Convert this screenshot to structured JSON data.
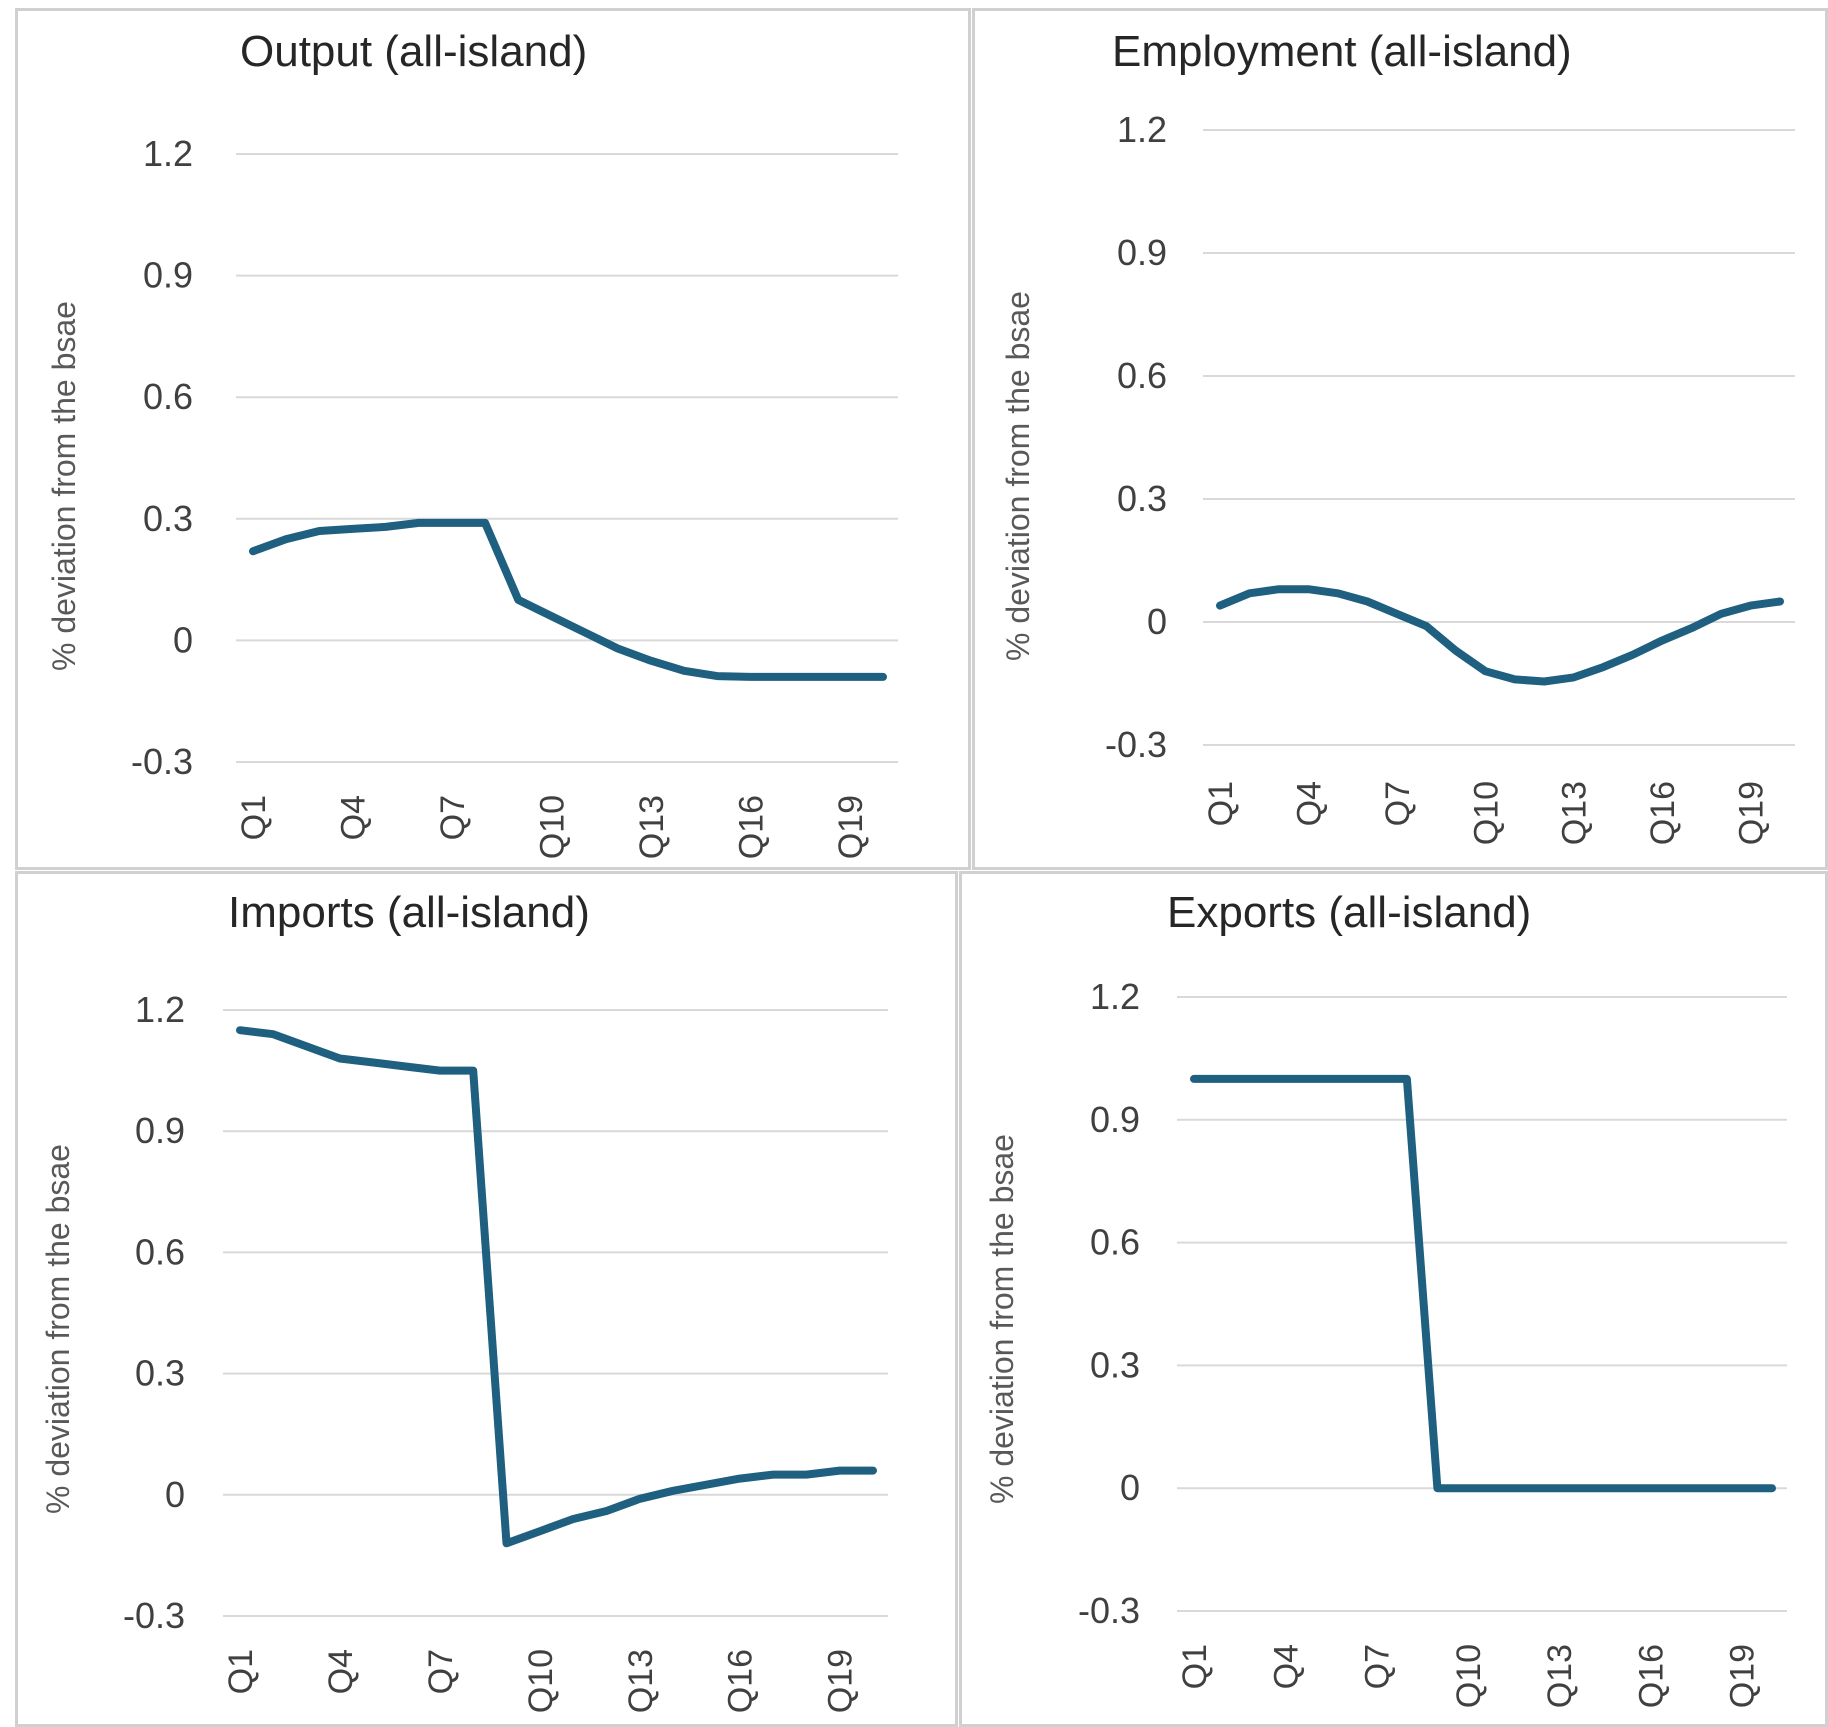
{
  "colors": {
    "series": "#1f5f80",
    "grid": "#d9d9d9",
    "text": "#404040"
  },
  "chart_data": [
    {
      "type": "line",
      "title": "Output (all-island)",
      "ylabel": "% deviation from the bsae",
      "xlabel": "",
      "ylim": [
        -0.3,
        1.2
      ],
      "yticks": [
        "1.2",
        "0.9",
        "0.6",
        "0.3",
        "0",
        "-0.3"
      ],
      "xticks": [
        "Q1",
        "Q4",
        "Q7",
        "Q10",
        "Q13",
        "Q16",
        "Q19"
      ],
      "x": [
        "Q1",
        "Q2",
        "Q3",
        "Q4",
        "Q5",
        "Q6",
        "Q7",
        "Q8",
        "Q9",
        "Q10",
        "Q11",
        "Q12",
        "Q13",
        "Q14",
        "Q15",
        "Q16",
        "Q17",
        "Q18",
        "Q19",
        "Q20"
      ],
      "values": [
        0.22,
        0.25,
        0.27,
        0.275,
        0.28,
        0.29,
        0.29,
        0.29,
        0.1,
        0.06,
        0.02,
        -0.02,
        -0.05,
        -0.075,
        -0.088,
        -0.09,
        -0.09,
        -0.09,
        -0.09,
        -0.09
      ],
      "grid": true
    },
    {
      "type": "line",
      "title": "Employment (all-island)",
      "ylabel": "% deviation from the bsae",
      "xlabel": "",
      "ylim": [
        -0.3,
        1.2
      ],
      "yticks": [
        "1.2",
        "0.9",
        "0.6",
        "0.3",
        "0",
        "-0.3"
      ],
      "xticks": [
        "Q1",
        "Q4",
        "Q7",
        "Q10",
        "Q13",
        "Q16",
        "Q19"
      ],
      "x": [
        "Q1",
        "Q2",
        "Q3",
        "Q4",
        "Q5",
        "Q6",
        "Q7",
        "Q8",
        "Q9",
        "Q10",
        "Q11",
        "Q12",
        "Q13",
        "Q14",
        "Q15",
        "Q16",
        "Q17",
        "Q18",
        "Q19",
        "Q20"
      ],
      "values": [
        0.04,
        0.07,
        0.08,
        0.08,
        0.07,
        0.05,
        0.02,
        -0.01,
        -0.07,
        -0.12,
        -0.14,
        -0.145,
        -0.135,
        -0.11,
        -0.08,
        -0.045,
        -0.015,
        0.02,
        0.04,
        0.05
      ],
      "grid": true
    },
    {
      "type": "line",
      "title": "Imports (all-island)",
      "ylabel": "% deviation from the bsae",
      "xlabel": "",
      "ylim": [
        -0.3,
        1.2
      ],
      "yticks": [
        "1.2",
        "0.9",
        "0.6",
        "0.3",
        "0",
        "-0.3"
      ],
      "xticks": [
        "Q1",
        "Q4",
        "Q7",
        "Q10",
        "Q13",
        "Q16",
        "Q19"
      ],
      "x": [
        "Q1",
        "Q2",
        "Q3",
        "Q4",
        "Q5",
        "Q6",
        "Q7",
        "Q8",
        "Q9",
        "Q10",
        "Q11",
        "Q12",
        "Q13",
        "Q14",
        "Q15",
        "Q16",
        "Q17",
        "Q18",
        "Q19",
        "Q20"
      ],
      "values": [
        1.15,
        1.14,
        1.11,
        1.08,
        1.07,
        1.06,
        1.05,
        1.05,
        -0.12,
        -0.09,
        -0.06,
        -0.04,
        -0.01,
        0.01,
        0.025,
        0.04,
        0.05,
        0.05,
        0.06,
        0.06
      ],
      "grid": true
    },
    {
      "type": "line",
      "title": "Exports (all-island)",
      "ylabel": "% deviation from the bsae",
      "xlabel": "",
      "ylim": [
        -0.3,
        1.2
      ],
      "yticks": [
        "1.2",
        "0.9",
        "0.6",
        "0.3",
        "0",
        "-0.3"
      ],
      "xticks": [
        "Q1",
        "Q4",
        "Q7",
        "Q10",
        "Q13",
        "Q16",
        "Q19"
      ],
      "x": [
        "Q1",
        "Q2",
        "Q3",
        "Q4",
        "Q5",
        "Q6",
        "Q7",
        "Q8",
        "Q9",
        "Q10",
        "Q11",
        "Q12",
        "Q13",
        "Q14",
        "Q15",
        "Q16",
        "Q17",
        "Q18",
        "Q19",
        "Q20"
      ],
      "values": [
        1.0,
        1.0,
        1.0,
        1.0,
        1.0,
        1.0,
        1.0,
        1.0,
        0,
        0,
        0,
        0,
        0,
        0,
        0,
        0,
        0,
        0,
        0,
        0
      ],
      "grid": true
    }
  ]
}
